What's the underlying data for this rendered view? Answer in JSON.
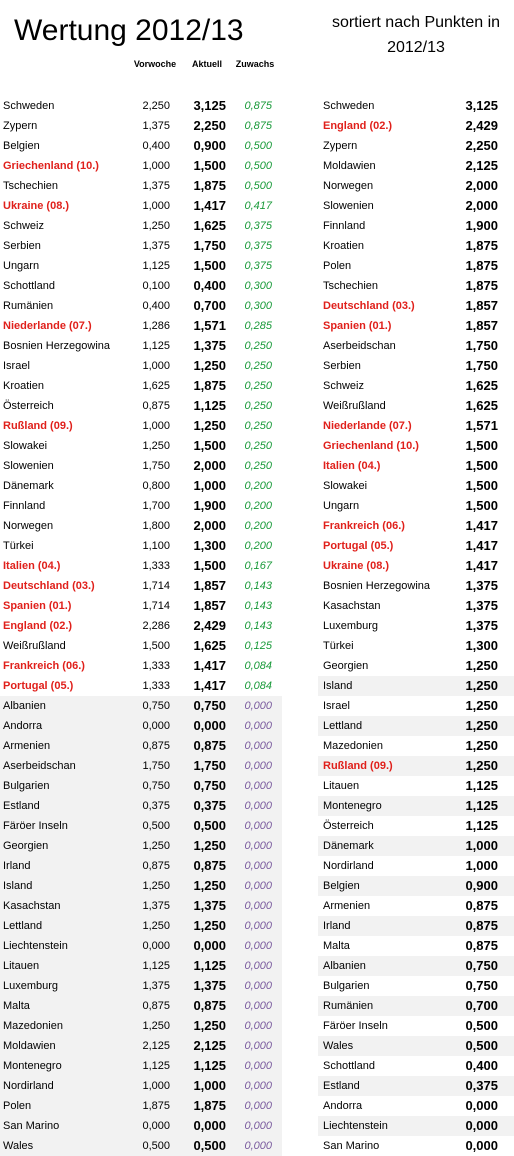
{
  "title": "Wertung 2012/13",
  "subtitle": "sortiert nach Punkten in 2012/13",
  "headers": {
    "previous": "Vorwoche",
    "current": "Aktuell",
    "gain": "Zuwachs"
  },
  "colors": {
    "highlight": "#e0201b",
    "gain_positive": "#1a9a3a",
    "gain_zero": "#7a5b9e",
    "row_shade": "#f2f2f2"
  },
  "left_table": [
    {
      "name": "Schweden",
      "prev": "2,250",
      "cur": "3,125",
      "gain": "0,875",
      "hl": false
    },
    {
      "name": "Zypern",
      "prev": "1,375",
      "cur": "2,250",
      "gain": "0,875",
      "hl": false
    },
    {
      "name": "Belgien",
      "prev": "0,400",
      "cur": "0,900",
      "gain": "0,500",
      "hl": false
    },
    {
      "name": "Griechenland (10.)",
      "prev": "1,000",
      "cur": "1,500",
      "gain": "0,500",
      "hl": true
    },
    {
      "name": "Tschechien",
      "prev": "1,375",
      "cur": "1,875",
      "gain": "0,500",
      "hl": false
    },
    {
      "name": "Ukraine (08.)",
      "prev": "1,000",
      "cur": "1,417",
      "gain": "0,417",
      "hl": true
    },
    {
      "name": "Schweiz",
      "prev": "1,250",
      "cur": "1,625",
      "gain": "0,375",
      "hl": false
    },
    {
      "name": "Serbien",
      "prev": "1,375",
      "cur": "1,750",
      "gain": "0,375",
      "hl": false
    },
    {
      "name": "Ungarn",
      "prev": "1,125",
      "cur": "1,500",
      "gain": "0,375",
      "hl": false
    },
    {
      "name": "Schottland",
      "prev": "0,100",
      "cur": "0,400",
      "gain": "0,300",
      "hl": false
    },
    {
      "name": "Rumänien",
      "prev": "0,400",
      "cur": "0,700",
      "gain": "0,300",
      "hl": false
    },
    {
      "name": "Niederlande (07.)",
      "prev": "1,286",
      "cur": "1,571",
      "gain": "0,285",
      "hl": true
    },
    {
      "name": "Bosnien Herzegowina",
      "prev": "1,125",
      "cur": "1,375",
      "gain": "0,250",
      "hl": false
    },
    {
      "name": "Israel",
      "prev": "1,000",
      "cur": "1,250",
      "gain": "0,250",
      "hl": false
    },
    {
      "name": "Kroatien",
      "prev": "1,625",
      "cur": "1,875",
      "gain": "0,250",
      "hl": false
    },
    {
      "name": "Österreich",
      "prev": "0,875",
      "cur": "1,125",
      "gain": "0,250",
      "hl": false
    },
    {
      "name": "Rußland (09.)",
      "prev": "1,000",
      "cur": "1,250",
      "gain": "0,250",
      "hl": true
    },
    {
      "name": "Slowakei",
      "prev": "1,250",
      "cur": "1,500",
      "gain": "0,250",
      "hl": false
    },
    {
      "name": "Slowenien",
      "prev": "1,750",
      "cur": "2,000",
      "gain": "0,250",
      "hl": false
    },
    {
      "name": "Dänemark",
      "prev": "0,800",
      "cur": "1,000",
      "gain": "0,200",
      "hl": false
    },
    {
      "name": "Finnland",
      "prev": "1,700",
      "cur": "1,900",
      "gain": "0,200",
      "hl": false
    },
    {
      "name": "Norwegen",
      "prev": "1,800",
      "cur": "2,000",
      "gain": "0,200",
      "hl": false
    },
    {
      "name": "Türkei",
      "prev": "1,100",
      "cur": "1,300",
      "gain": "0,200",
      "hl": false
    },
    {
      "name": "Italien (04.)",
      "prev": "1,333",
      "cur": "1,500",
      "gain": "0,167",
      "hl": true
    },
    {
      "name": "Deutschland (03.)",
      "prev": "1,714",
      "cur": "1,857",
      "gain": "0,143",
      "hl": true
    },
    {
      "name": "Spanien (01.)",
      "prev": "1,714",
      "cur": "1,857",
      "gain": "0,143",
      "hl": true
    },
    {
      "name": "England (02.)",
      "prev": "2,286",
      "cur": "2,429",
      "gain": "0,143",
      "hl": true
    },
    {
      "name": "Weißrußland",
      "prev": "1,500",
      "cur": "1,625",
      "gain": "0,125",
      "hl": false
    },
    {
      "name": "Frankreich (06.)",
      "prev": "1,333",
      "cur": "1,417",
      "gain": "0,084",
      "hl": true
    },
    {
      "name": "Portugal (05.)",
      "prev": "1,333",
      "cur": "1,417",
      "gain": "0,084",
      "hl": true
    },
    {
      "name": "Albanien",
      "prev": "0,750",
      "cur": "0,750",
      "gain": "0,000",
      "hl": false
    },
    {
      "name": "Andorra",
      "prev": "0,000",
      "cur": "0,000",
      "gain": "0,000",
      "hl": false
    },
    {
      "name": "Armenien",
      "prev": "0,875",
      "cur": "0,875",
      "gain": "0,000",
      "hl": false
    },
    {
      "name": "Aserbeidschan",
      "prev": "1,750",
      "cur": "1,750",
      "gain": "0,000",
      "hl": false
    },
    {
      "name": "Bulgarien",
      "prev": "0,750",
      "cur": "0,750",
      "gain": "0,000",
      "hl": false
    },
    {
      "name": "Estland",
      "prev": "0,375",
      "cur": "0,375",
      "gain": "0,000",
      "hl": false
    },
    {
      "name": "Färöer Inseln",
      "prev": "0,500",
      "cur": "0,500",
      "gain": "0,000",
      "hl": false
    },
    {
      "name": "Georgien",
      "prev": "1,250",
      "cur": "1,250",
      "gain": "0,000",
      "hl": false
    },
    {
      "name": "Irland",
      "prev": "0,875",
      "cur": "0,875",
      "gain": "0,000",
      "hl": false
    },
    {
      "name": "Island",
      "prev": "1,250",
      "cur": "1,250",
      "gain": "0,000",
      "hl": false
    },
    {
      "name": "Kasachstan",
      "prev": "1,375",
      "cur": "1,375",
      "gain": "0,000",
      "hl": false
    },
    {
      "name": "Lettland",
      "prev": "1,250",
      "cur": "1,250",
      "gain": "0,000",
      "hl": false
    },
    {
      "name": "Liechtenstein",
      "prev": "0,000",
      "cur": "0,000",
      "gain": "0,000",
      "hl": false
    },
    {
      "name": "Litauen",
      "prev": "1,125",
      "cur": "1,125",
      "gain": "0,000",
      "hl": false
    },
    {
      "name": "Luxemburg",
      "prev": "1,375",
      "cur": "1,375",
      "gain": "0,000",
      "hl": false
    },
    {
      "name": "Malta",
      "prev": "0,875",
      "cur": "0,875",
      "gain": "0,000",
      "hl": false
    },
    {
      "name": "Mazedonien",
      "prev": "1,250",
      "cur": "1,250",
      "gain": "0,000",
      "hl": false
    },
    {
      "name": "Moldawien",
      "prev": "2,125",
      "cur": "2,125",
      "gain": "0,000",
      "hl": false
    },
    {
      "name": "Montenegro",
      "prev": "1,125",
      "cur": "1,125",
      "gain": "0,000",
      "hl": false
    },
    {
      "name": "Nordirland",
      "prev": "1,000",
      "cur": "1,000",
      "gain": "0,000",
      "hl": false
    },
    {
      "name": "Polen",
      "prev": "1,875",
      "cur": "1,875",
      "gain": "0,000",
      "hl": false
    },
    {
      "name": "San Marino",
      "prev": "0,000",
      "cur": "0,000",
      "gain": "0,000",
      "hl": false
    },
    {
      "name": "Wales",
      "prev": "0,500",
      "cur": "0,500",
      "gain": "0,000",
      "hl": false
    }
  ],
  "right_table": [
    {
      "name": "Schweden",
      "pts": "3,125",
      "hl": false
    },
    {
      "name": "England (02.)",
      "pts": "2,429",
      "hl": true
    },
    {
      "name": "Zypern",
      "pts": "2,250",
      "hl": false
    },
    {
      "name": "Moldawien",
      "pts": "2,125",
      "hl": false
    },
    {
      "name": "Norwegen",
      "pts": "2,000",
      "hl": false
    },
    {
      "name": "Slowenien",
      "pts": "2,000",
      "hl": false
    },
    {
      "name": "Finnland",
      "pts": "1,900",
      "hl": false
    },
    {
      "name": "Kroatien",
      "pts": "1,875",
      "hl": false
    },
    {
      "name": "Polen",
      "pts": "1,875",
      "hl": false
    },
    {
      "name": "Tschechien",
      "pts": "1,875",
      "hl": false
    },
    {
      "name": "Deutschland (03.)",
      "pts": "1,857",
      "hl": true
    },
    {
      "name": "Spanien (01.)",
      "pts": "1,857",
      "hl": true
    },
    {
      "name": "Aserbeidschan",
      "pts": "1,750",
      "hl": false
    },
    {
      "name": "Serbien",
      "pts": "1,750",
      "hl": false
    },
    {
      "name": "Schweiz",
      "pts": "1,625",
      "hl": false
    },
    {
      "name": "Weißrußland",
      "pts": "1,625",
      "hl": false
    },
    {
      "name": "Niederlande (07.)",
      "pts": "1,571",
      "hl": true
    },
    {
      "name": "Griechenland (10.)",
      "pts": "1,500",
      "hl": true
    },
    {
      "name": "Italien (04.)",
      "pts": "1,500",
      "hl": true
    },
    {
      "name": "Slowakei",
      "pts": "1,500",
      "hl": false
    },
    {
      "name": "Ungarn",
      "pts": "1,500",
      "hl": false
    },
    {
      "name": "Frankreich (06.)",
      "pts": "1,417",
      "hl": true
    },
    {
      "name": "Portugal (05.)",
      "pts": "1,417",
      "hl": true
    },
    {
      "name": "Ukraine (08.)",
      "pts": "1,417",
      "hl": true
    },
    {
      "name": "Bosnien Herzegowina",
      "pts": "1,375",
      "hl": false
    },
    {
      "name": "Kasachstan",
      "pts": "1,375",
      "hl": false
    },
    {
      "name": "Luxemburg",
      "pts": "1,375",
      "hl": false
    },
    {
      "name": "Türkei",
      "pts": "1,300",
      "hl": false
    },
    {
      "name": "Georgien",
      "pts": "1,250",
      "hl": false
    },
    {
      "name": "Island",
      "pts": "1,250",
      "hl": false
    },
    {
      "name": "Israel",
      "pts": "1,250",
      "hl": false
    },
    {
      "name": "Lettland",
      "pts": "1,250",
      "hl": false
    },
    {
      "name": "Mazedonien",
      "pts": "1,250",
      "hl": false
    },
    {
      "name": "Rußland (09.)",
      "pts": "1,250",
      "hl": true
    },
    {
      "name": "Litauen",
      "pts": "1,125",
      "hl": false
    },
    {
      "name": "Montenegro",
      "pts": "1,125",
      "hl": false
    },
    {
      "name": "Österreich",
      "pts": "1,125",
      "hl": false
    },
    {
      "name": "Dänemark",
      "pts": "1,000",
      "hl": false
    },
    {
      "name": "Nordirland",
      "pts": "1,000",
      "hl": false
    },
    {
      "name": "Belgien",
      "pts": "0,900",
      "hl": false
    },
    {
      "name": "Armenien",
      "pts": "0,875",
      "hl": false
    },
    {
      "name": "Irland",
      "pts": "0,875",
      "hl": false
    },
    {
      "name": "Malta",
      "pts": "0,875",
      "hl": false
    },
    {
      "name": "Albanien",
      "pts": "0,750",
      "hl": false
    },
    {
      "name": "Bulgarien",
      "pts": "0,750",
      "hl": false
    },
    {
      "name": "Rumänien",
      "pts": "0,700",
      "hl": false
    },
    {
      "name": "Färöer Inseln",
      "pts": "0,500",
      "hl": false
    },
    {
      "name": "Wales",
      "pts": "0,500",
      "hl": false
    },
    {
      "name": "Schottland",
      "pts": "0,400",
      "hl": false
    },
    {
      "name": "Estland",
      "pts": "0,375",
      "hl": false
    },
    {
      "name": "Andorra",
      "pts": "0,000",
      "hl": false
    },
    {
      "name": "Liechtenstein",
      "pts": "0,000",
      "hl": false
    },
    {
      "name": "San Marino",
      "pts": "0,000",
      "hl": false
    }
  ]
}
